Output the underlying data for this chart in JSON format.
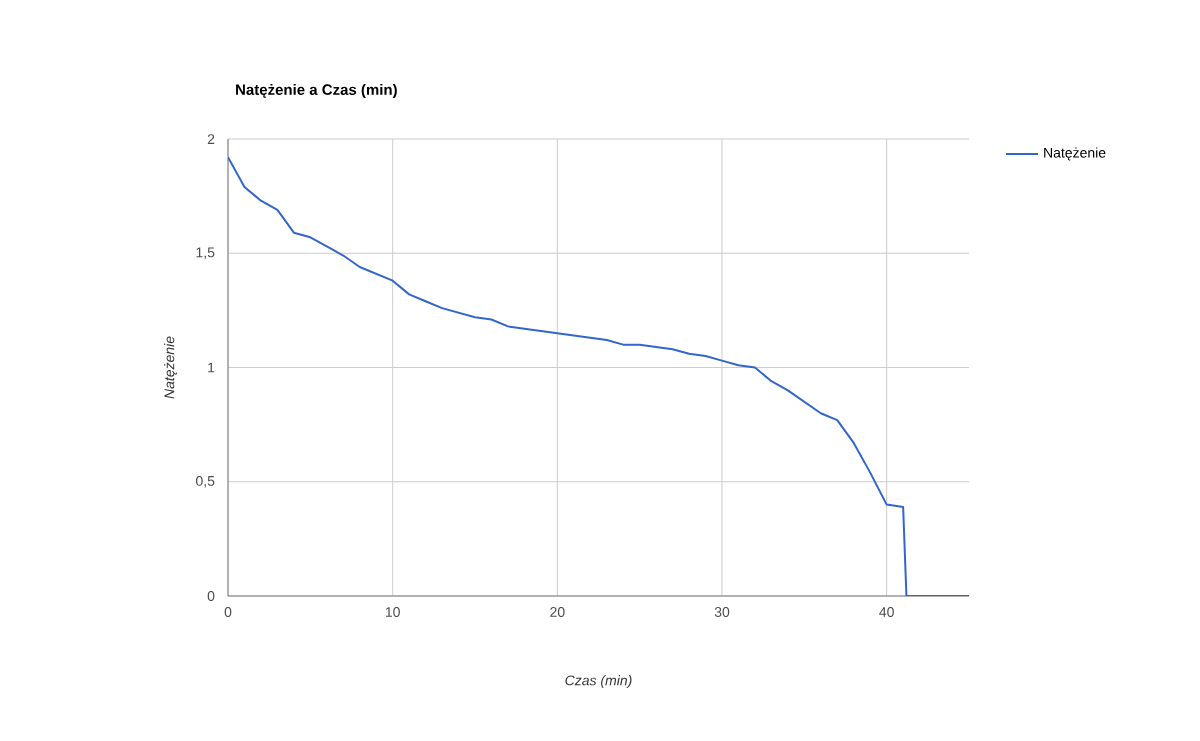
{
  "chart_data": {
    "type": "line",
    "title": "Natężenie a Czas (min)",
    "xlabel": "Czas (min)",
    "ylabel": "Natężenie",
    "x": [
      0,
      1,
      2,
      3,
      4,
      5,
      6,
      7,
      8,
      9,
      10,
      11,
      12,
      13,
      14,
      15,
      16,
      17,
      18,
      19,
      20,
      21,
      22,
      23,
      24,
      25,
      26,
      27,
      28,
      29,
      30,
      31,
      32,
      33,
      34,
      35,
      36,
      37,
      38,
      39,
      40,
      41,
      41.2,
      42,
      43,
      44,
      45
    ],
    "series": [
      {
        "name": "Natężenie",
        "color": "#3366cc",
        "values": [
          1.92,
          1.79,
          1.73,
          1.69,
          1.59,
          1.57,
          1.53,
          1.49,
          1.44,
          1.41,
          1.38,
          1.32,
          1.29,
          1.26,
          1.24,
          1.22,
          1.21,
          1.18,
          1.17,
          1.16,
          1.15,
          1.14,
          1.13,
          1.12,
          1.1,
          1.1,
          1.09,
          1.08,
          1.06,
          1.05,
          1.03,
          1.01,
          1.0,
          0.94,
          0.9,
          0.85,
          0.8,
          0.77,
          0.67,
          0.54,
          0.4,
          0.39,
          0,
          0,
          0,
          0,
          0
        ]
      }
    ],
    "xlim": [
      0,
      45
    ],
    "xticks": [
      0,
      10,
      20,
      30,
      40
    ],
    "ylim": [
      0,
      2
    ],
    "yticks": [
      0,
      {
        "value": 0.5,
        "label": "0,5"
      },
      1,
      {
        "value": 1.5,
        "label": "1,5"
      },
      2
    ],
    "grid": true,
    "legend": "right",
    "marker": "none",
    "line_style": "solid"
  }
}
